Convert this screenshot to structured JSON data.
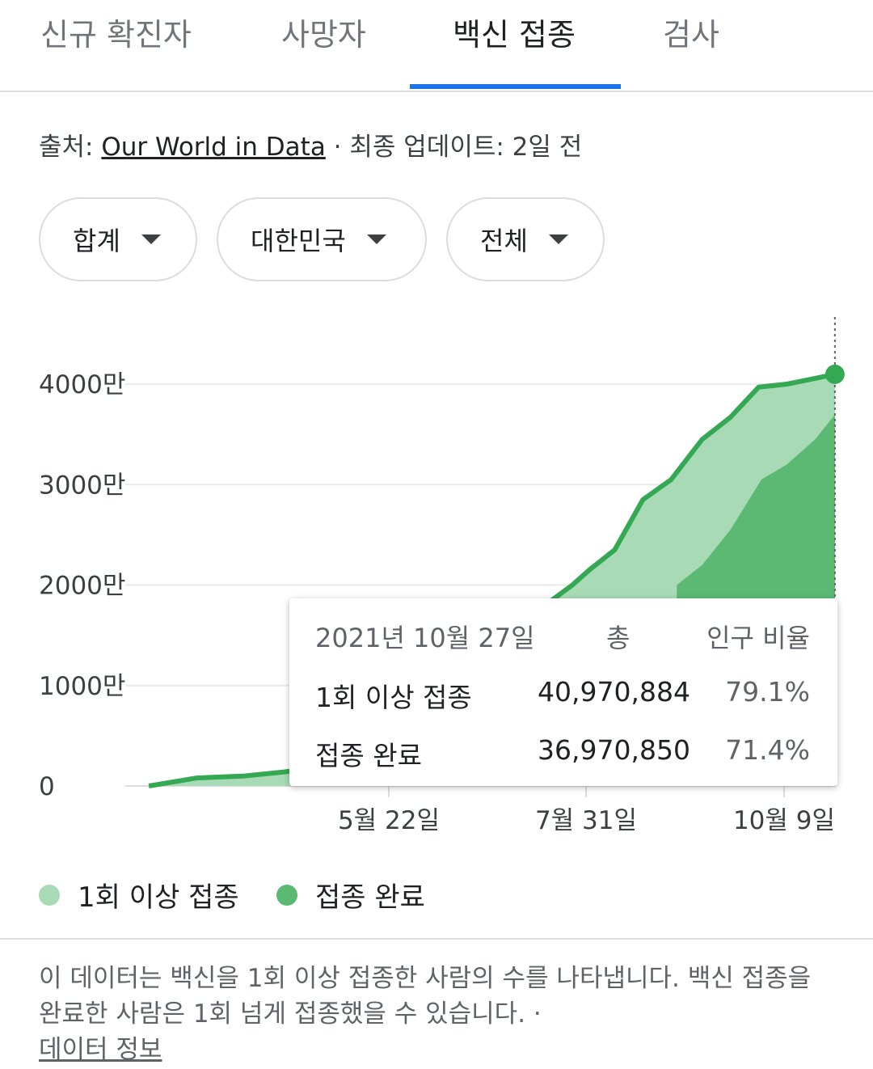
{
  "tabs": [
    {
      "label": "신규 확진자",
      "active": false
    },
    {
      "label": "사망자",
      "active": false
    },
    {
      "label": "백신 접종",
      "active": true
    },
    {
      "label": "검사",
      "active": false
    }
  ],
  "source": {
    "prefix": "출처: ",
    "link_text": "Our World in Data",
    "suffix": " · 최종 업데이트: 2일 전"
  },
  "filters": [
    {
      "label": "합계",
      "icon": "dropdown-triangle-icon"
    },
    {
      "label": "대한민국",
      "icon": "dropdown-triangle-icon"
    },
    {
      "label": "전체",
      "icon": "dropdown-triangle-icon"
    }
  ],
  "chart_data": {
    "type": "area",
    "y_ticks": [
      "0",
      "1000만",
      "2000만",
      "3000만",
      "4000만"
    ],
    "x_ticks": [
      "5월 22일",
      "7월 31일",
      "10월 9일"
    ],
    "series": [
      {
        "name": "1회 이상 접종",
        "color": "#a8dab5",
        "line_color": "#34a853",
        "points": [
          [
            "2021-02-26",
            0
          ],
          [
            "2021-03-15",
            800000
          ],
          [
            "2021-04-01",
            1000000
          ],
          [
            "2021-04-15",
            1400000
          ],
          [
            "2021-04-30",
            2000000
          ],
          [
            "2021-07-26",
            20000000
          ],
          [
            "2021-08-01",
            21500000
          ],
          [
            "2021-08-10",
            23500000
          ],
          [
            "2021-08-20",
            28500000
          ],
          [
            "2021-08-30",
            30500000
          ],
          [
            "2021-09-10",
            34500000
          ],
          [
            "2021-09-20",
            36700000
          ],
          [
            "2021-09-30",
            39700000
          ],
          [
            "2021-10-10",
            40000000
          ],
          [
            "2021-10-27",
            40970884
          ]
        ]
      },
      {
        "name": "접종 완료",
        "color": "#5bb974",
        "points": [
          [
            "2021-09-01",
            20000000
          ],
          [
            "2021-09-10",
            22000000
          ],
          [
            "2021-09-20",
            25500000
          ],
          [
            "2021-10-01",
            30500000
          ],
          [
            "2021-10-10",
            32000000
          ],
          [
            "2021-10-20",
            34500000
          ],
          [
            "2021-10-27",
            36970850
          ]
        ]
      }
    ],
    "y_max_tick": 40000000,
    "grid": true,
    "current_date": "2021-10-27"
  },
  "tooltip": {
    "date": "2021년 10월 27일",
    "col_total": "총",
    "col_ratio": "인구 비율",
    "rows": [
      {
        "label": "1회 이상 접종",
        "total": "40,970,884",
        "ratio": "79.1%"
      },
      {
        "label": "접종 완료",
        "total": "36,970,850",
        "ratio": "71.4%"
      }
    ]
  },
  "legend": [
    {
      "label": "1회 이상 접종",
      "color": "#a8dab5"
    },
    {
      "label": "접종 완료",
      "color": "#5bb974"
    }
  ],
  "note": {
    "text": "이 데이터는 백신을 1회 이상 접종한 사람의 수를 나타냅니다. 백신 접종을 완료한 사람은 1회 넘게 접종했을 수 있습니다. · ",
    "link_text": "데이터 정보"
  }
}
